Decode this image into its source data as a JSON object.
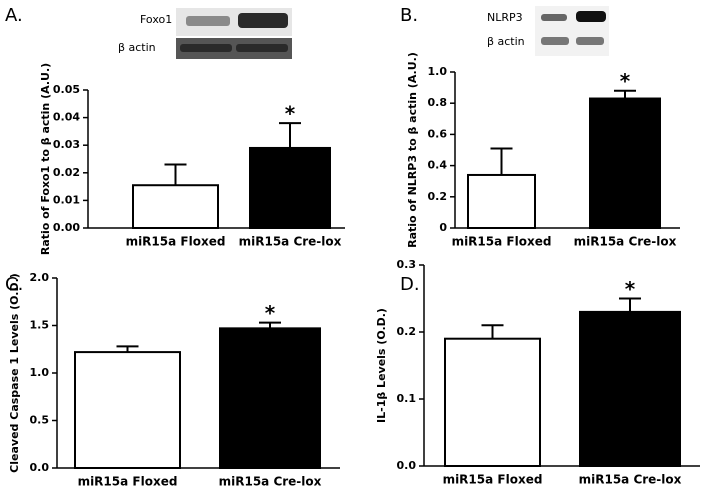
{
  "chart_data": [
    {
      "type": "bar",
      "panel": "A.",
      "blot_labels": [
        "Foxo1",
        "β actin"
      ],
      "y_label": "Ratio of Foxo1 to β actin (A.U.)",
      "categories": [
        "miR15a Floxed",
        "miR15a Cre-lox"
      ],
      "values": [
        0.0155,
        0.029
      ],
      "errors": [
        0.0075,
        0.009
      ],
      "colors": [
        "#ffffff",
        "#000000"
      ],
      "annotation": "*",
      "ylim": [
        0,
        0.05
      ],
      "yticks": [
        {
          "value": 0,
          "label": "0.00"
        },
        {
          "value": 0.01,
          "label": "0.01"
        },
        {
          "value": 0.02,
          "label": "0.02"
        },
        {
          "value": 0.03,
          "label": "0.03"
        },
        {
          "value": 0.04,
          "label": "0.04"
        },
        {
          "value": 0.05,
          "label": "0.05"
        }
      ]
    },
    {
      "type": "bar",
      "panel": "B.",
      "blot_labels": [
        "NLRP3",
        "β actin"
      ],
      "y_label": "Ratio of NLRP3 to β actin (A.U.)",
      "categories": [
        "miR15a Floxed",
        "miR15a Cre-lox"
      ],
      "values": [
        0.34,
        0.83
      ],
      "errors": [
        0.17,
        0.05
      ],
      "colors": [
        "#ffffff",
        "#000000"
      ],
      "annotation": "*",
      "ylim": [
        0,
        1.0
      ],
      "yticks": [
        0,
        0.2,
        0.4,
        0.6,
        0.8,
        {
          "value": 1.0,
          "label": "1.0"
        }
      ]
    },
    {
      "type": "bar",
      "panel": "C.",
      "y_label": "Cleaved Caspase 1 Levels (O.D.)",
      "categories": [
        "miR15a Floxed",
        "miR15a Cre-lox"
      ],
      "values": [
        1.22,
        1.47
      ],
      "errors": [
        0.06,
        0.06
      ],
      "colors": [
        "#ffffff",
        "#000000"
      ],
      "annotation": "*",
      "ylim": [
        0,
        2.0
      ],
      "yticks": [
        {
          "value": 0,
          "label": "0.0"
        },
        {
          "value": 0.5,
          "label": "0.5"
        },
        {
          "value": 1.0,
          "label": "1.0"
        },
        {
          "value": 1.5,
          "label": "1.5"
        },
        {
          "value": 2.0,
          "label": "2.0"
        }
      ]
    },
    {
      "type": "bar",
      "panel": "D.",
      "y_label": "IL-1β Levels (O.D.)",
      "categories": [
        "miR15a Floxed",
        "miR15a Cre-lox"
      ],
      "values": [
        0.19,
        0.23
      ],
      "errors": [
        0.02,
        0.02
      ],
      "colors": [
        "#ffffff",
        "#000000"
      ],
      "annotation": "*",
      "ylim": [
        0,
        0.3
      ],
      "yticks": [
        {
          "value": 0,
          "label": "0.0"
        },
        {
          "value": 0.1,
          "label": "0.1"
        },
        {
          "value": 0.2,
          "label": "0.2"
        },
        {
          "value": 0.3,
          "label": "0.3"
        }
      ]
    }
  ]
}
